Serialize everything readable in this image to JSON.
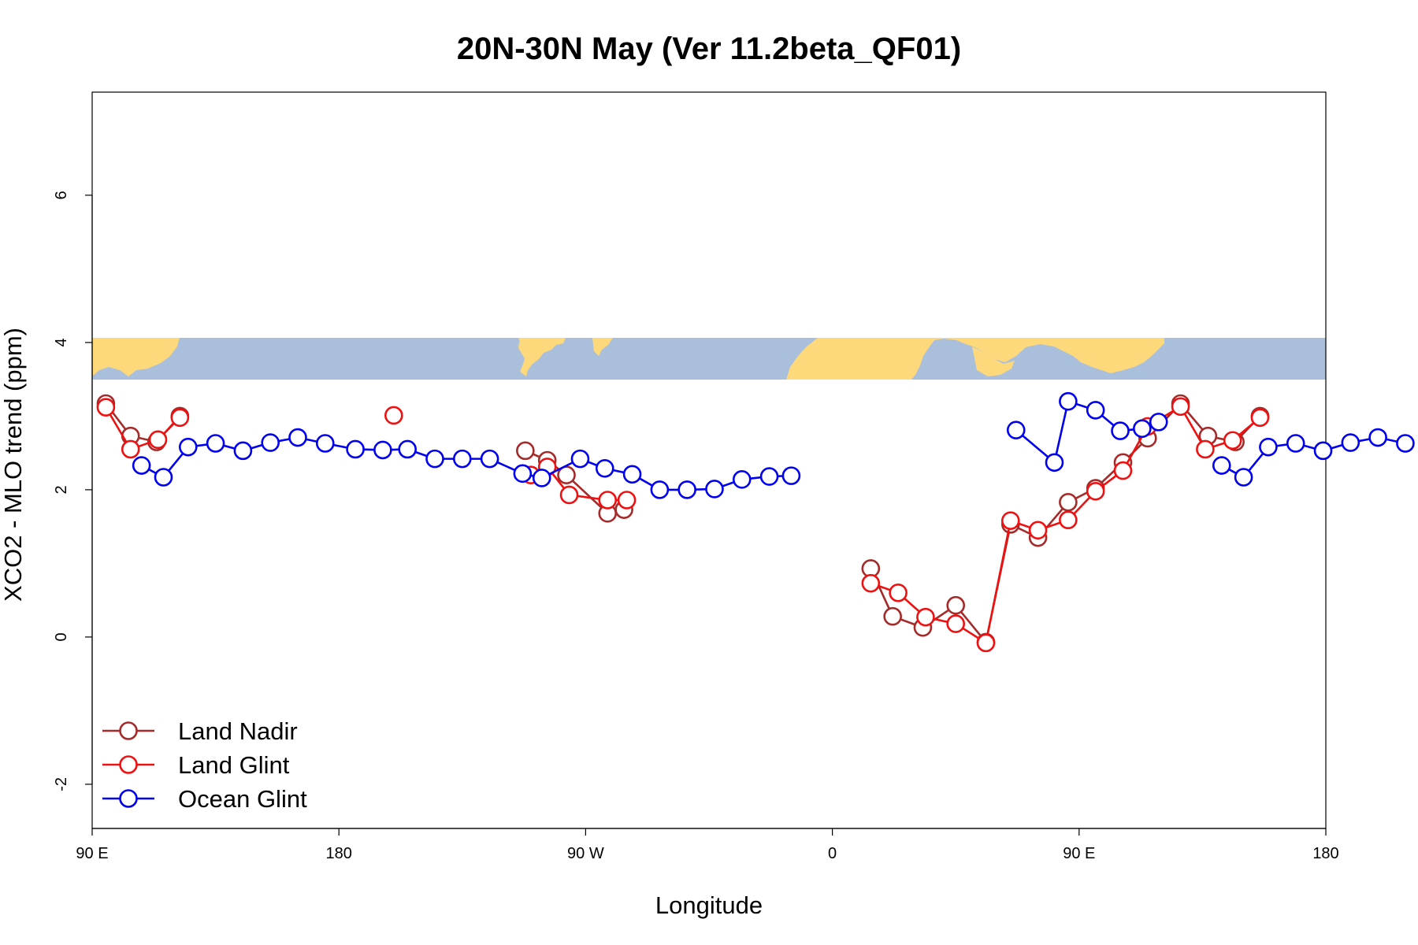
{
  "chart_data": {
    "type": "line",
    "title": "20N-30N May (Ver 11.2beta_QF01)",
    "xlabel": "Longitude",
    "ylabel": "XCO2 - MLO trend (ppm)",
    "xlim": [
      90,
      540
    ],
    "ylim": [
      -2.6,
      7.4
    ],
    "x_ticks": [
      {
        "x": 90,
        "label": "90 E"
      },
      {
        "x": 180,
        "label": "180"
      },
      {
        "x": 270,
        "label": "90 W"
      },
      {
        "x": 360,
        "label": "0"
      },
      {
        "x": 450,
        "label": "90 E"
      },
      {
        "x": 540,
        "label": "180"
      }
    ],
    "y_ticks": [
      {
        "y": -2,
        "label": "-2"
      },
      {
        "y": 0,
        "label": "0"
      },
      {
        "y": 2,
        "label": "2"
      },
      {
        "y": 4,
        "label": "4"
      },
      {
        "y": 6,
        "label": "6"
      }
    ],
    "map_band": {
      "y_range": [
        3.5,
        4.05
      ],
      "ocean_color": "#a9bfdc",
      "land_color": "#fdd97c"
    },
    "legend_position": "bottom-left",
    "series": [
      {
        "name": "Land Nadir",
        "color": "#a52a2a",
        "segments": [
          [
            [
              95,
              3.17
            ],
            [
              104,
              2.73
            ],
            [
              113.5,
              2.65
            ],
            [
              122,
              3.0
            ]
          ],
          [
            [
              248,
              2.53
            ],
            [
              256,
              2.4
            ],
            [
              263,
              2.2
            ],
            [
              278,
              1.68
            ],
            [
              284,
              1.73
            ]
          ],
          [
            [
              374,
              0.93
            ],
            [
              382,
              0.28
            ],
            [
              393,
              0.13
            ],
            [
              405,
              0.43
            ],
            [
              416,
              -0.07
            ],
            [
              425,
              1.53
            ],
            [
              435,
              1.35
            ],
            [
              446,
              1.83
            ],
            [
              456,
              2.02
            ],
            [
              466,
              2.37
            ],
            [
              475,
              2.7
            ],
            [
              487,
              3.17
            ],
            [
              497,
              2.73
            ],
            [
              507,
              2.65
            ],
            [
              516,
              3.0
            ]
          ]
        ]
      },
      {
        "name": "Land Glint",
        "color": "#ee1111",
        "segments": [
          [
            [
              95,
              3.12
            ],
            [
              104,
              2.55
            ],
            [
              114,
              2.68
            ],
            [
              122,
              2.98
            ]
          ],
          [
            [
              250,
              2.2
            ],
            [
              256,
              2.31
            ],
            [
              264,
              1.93
            ],
            [
              278,
              1.86
            ],
            [
              285,
              1.86
            ]
          ],
          [
            [
              200,
              3.01
            ]
          ],
          [
            [
              374,
              0.73
            ],
            [
              384,
              0.6
            ],
            [
              394,
              0.27
            ],
            [
              405,
              0.18
            ],
            [
              416,
              -0.08
            ],
            [
              425,
              1.58
            ],
            [
              435,
              1.45
            ],
            [
              446,
              1.59
            ],
            [
              456,
              1.98
            ],
            [
              466,
              2.26
            ],
            [
              475,
              2.86
            ],
            [
              487,
              3.13
            ],
            [
              496,
              2.55
            ],
            [
              506,
              2.67
            ],
            [
              516,
              2.98
            ]
          ]
        ]
      },
      {
        "name": "Ocean Glint",
        "color": "#0000ee",
        "segments": [
          [
            [
              108,
              2.33
            ],
            [
              116,
              2.17
            ],
            [
              125,
              2.58
            ],
            [
              135,
              2.63
            ],
            [
              145,
              2.53
            ],
            [
              155,
              2.64
            ],
            [
              165,
              2.71
            ],
            [
              175,
              2.63
            ],
            [
              186,
              2.55
            ],
            [
              196,
              2.54
            ],
            [
              205,
              2.55
            ],
            [
              215,
              2.42
            ],
            [
              225,
              2.42
            ],
            [
              235,
              2.42
            ],
            [
              247,
              2.22
            ],
            [
              254,
              2.16
            ],
            [
              268,
              2.42
            ],
            [
              277,
              2.29
            ],
            [
              287,
              2.21
            ],
            [
              297,
              2.0
            ],
            [
              307,
              2.0
            ],
            [
              317,
              2.01
            ],
            [
              327,
              2.14
            ],
            [
              337,
              2.18
            ],
            [
              345,
              2.19
            ]
          ],
          [
            [
              427,
              2.81
            ],
            [
              441,
              2.37
            ],
            [
              446,
              3.2
            ],
            [
              456,
              3.08
            ],
            [
              465,
              2.8
            ],
            [
              473,
              2.83
            ],
            [
              479,
              2.92
            ]
          ],
          [
            [
              502,
              2.33
            ],
            [
              510,
              2.17
            ],
            [
              519,
              2.58
            ],
            [
              529,
              2.63
            ],
            [
              539,
              2.53
            ],
            [
              549,
              2.64
            ],
            [
              559,
              2.71
            ],
            [
              569,
              2.63
            ]
          ]
        ]
      }
    ]
  }
}
